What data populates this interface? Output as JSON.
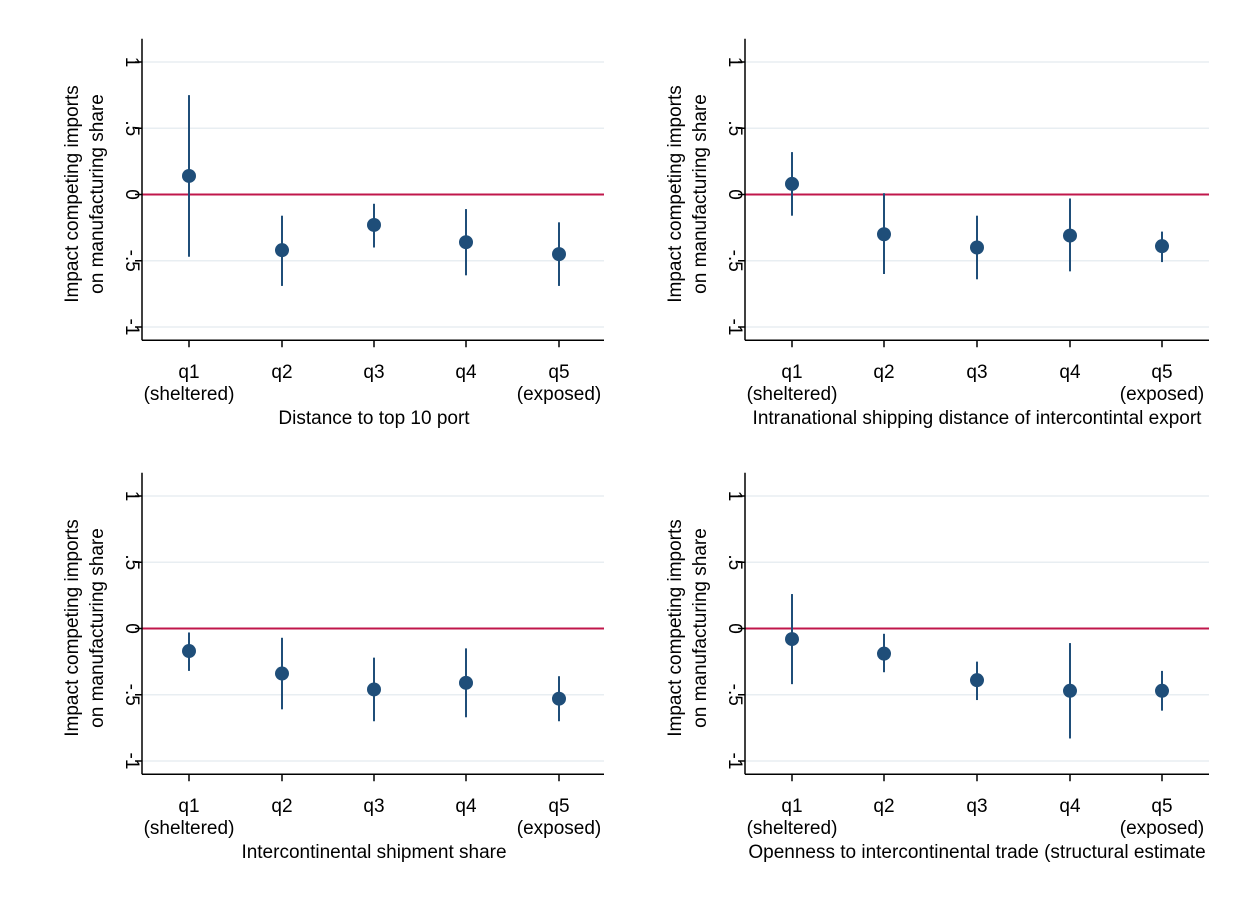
{
  "colors": {
    "marker": "#1f4e79",
    "zero_line": "#c0174b",
    "grid": "#e8eef2",
    "axis": "#000000"
  },
  "chart_data": [
    {
      "type": "scatter",
      "title": "",
      "xlabel": "Distance to top 10 port",
      "ylabel": [
        "Impact competing imports",
        "on manufacturing share"
      ],
      "categories": [
        [
          "q1",
          "(sheltered)"
        ],
        [
          "q2",
          ""
        ],
        [
          "q3",
          ""
        ],
        [
          "q4",
          ""
        ],
        [
          "q5",
          "(exposed)"
        ]
      ],
      "yticks": [
        "1",
        ".5",
        "0",
        "-.5",
        "-1"
      ],
      "ytick_values": [
        1,
        0.5,
        0,
        -0.5,
        -1
      ],
      "ylim": [
        -1.1,
        1.1
      ],
      "reference_line": 0,
      "grid": true,
      "estimates": [
        0.14,
        -0.42,
        -0.23,
        -0.36,
        -0.45
      ],
      "ci_lower": [
        -0.47,
        -0.69,
        -0.4,
        -0.61,
        -0.69
      ],
      "ci_upper": [
        0.75,
        -0.16,
        -0.07,
        -0.11,
        -0.21
      ]
    },
    {
      "type": "scatter",
      "title": "",
      "xlabel": "Intranational shipping distance of intercontintal export",
      "ylabel": [
        "Impact competing imports",
        "on manufacturing share"
      ],
      "categories": [
        [
          "q1",
          "(sheltered)"
        ],
        [
          "q2",
          ""
        ],
        [
          "q3",
          ""
        ],
        [
          "q4",
          ""
        ],
        [
          "q5",
          "(exposed)"
        ]
      ],
      "yticks": [
        "1",
        ".5",
        "0",
        "-.5",
        "-1"
      ],
      "ytick_values": [
        1,
        0.5,
        0,
        -0.5,
        -1
      ],
      "ylim": [
        -1.1,
        1.1
      ],
      "reference_line": 0,
      "grid": true,
      "estimates": [
        0.08,
        -0.3,
        -0.4,
        -0.31,
        -0.39
      ],
      "ci_lower": [
        -0.16,
        -0.6,
        -0.64,
        -0.58,
        -0.51
      ],
      "ci_upper": [
        0.32,
        0.01,
        -0.16,
        -0.03,
        -0.28
      ]
    },
    {
      "type": "scatter",
      "title": "",
      "xlabel": "Intercontinental shipment share",
      "ylabel": [
        "Impact competing imports",
        "on manufacturing share"
      ],
      "categories": [
        [
          "q1",
          "(sheltered)"
        ],
        [
          "q2",
          ""
        ],
        [
          "q3",
          ""
        ],
        [
          "q4",
          ""
        ],
        [
          "q5",
          "(exposed)"
        ]
      ],
      "yticks": [
        "1",
        ".5",
        "0",
        "-.5",
        "-1"
      ],
      "ytick_values": [
        1,
        0.5,
        0,
        -0.5,
        -1
      ],
      "ylim": [
        -1.1,
        1.1
      ],
      "reference_line": 0,
      "grid": true,
      "estimates": [
        -0.17,
        -0.34,
        -0.46,
        -0.41,
        -0.53
      ],
      "ci_lower": [
        -0.32,
        -0.61,
        -0.7,
        -0.67,
        -0.7
      ],
      "ci_upper": [
        -0.03,
        -0.07,
        -0.22,
        -0.15,
        -0.36
      ]
    },
    {
      "type": "scatter",
      "title": "",
      "xlabel": "Openness to intercontinental trade (structural estimate",
      "ylabel": [
        "Impact competing imports",
        "on manufacturing share"
      ],
      "categories": [
        [
          "q1",
          "(sheltered)"
        ],
        [
          "q2",
          ""
        ],
        [
          "q3",
          ""
        ],
        [
          "q4",
          ""
        ],
        [
          "q5",
          "(exposed)"
        ]
      ],
      "yticks": [
        "1",
        ".5",
        "0",
        "-.5",
        "-1"
      ],
      "ytick_values": [
        1,
        0.5,
        0,
        -0.5,
        -1
      ],
      "ylim": [
        -1.1,
        1.1
      ],
      "reference_line": 0,
      "grid": true,
      "estimates": [
        -0.08,
        -0.19,
        -0.39,
        -0.47,
        -0.47
      ],
      "ci_lower": [
        -0.42,
        -0.33,
        -0.54,
        -0.83,
        -0.62
      ],
      "ci_upper": [
        0.26,
        -0.04,
        -0.25,
        -0.11,
        -0.32
      ]
    }
  ]
}
